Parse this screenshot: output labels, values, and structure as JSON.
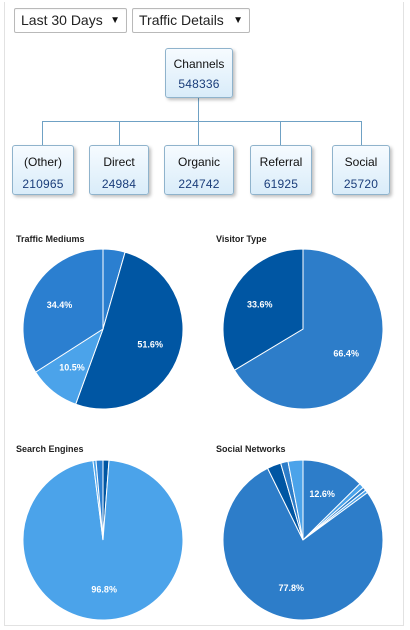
{
  "filters": {
    "range": "Last 30 Days",
    "view": "Traffic Details"
  },
  "tree": {
    "root": {
      "label": "Channels",
      "value": "548336"
    },
    "children": [
      {
        "label": "(Other)",
        "value": "210965"
      },
      {
        "label": "Direct",
        "value": "24984"
      },
      {
        "label": "Organic",
        "value": "224742"
      },
      {
        "label": "Referral",
        "value": "61925"
      },
      {
        "label": "Social",
        "value": "25720"
      }
    ]
  },
  "colors": {
    "dark_blue": "#0056a3",
    "mid_blue": "#2b7fd0",
    "medium_blue": "#2d7dc9",
    "light_blue": "#4ba3ea",
    "node_border": "#8fb3cc",
    "connector": "#6fa1c4"
  },
  "chart_data": [
    {
      "type": "pie",
      "title": "Traffic Mediums",
      "slices": [
        {
          "value": 4.5,
          "label": "",
          "color": "#2b7fd0"
        },
        {
          "value": 51.6,
          "label": "51.6%",
          "color": "#0056a3"
        },
        {
          "value": 10.5,
          "label": "10.5%",
          "color": "#4ba3ea"
        },
        {
          "value": 34.4,
          "label": "34.4%",
          "color": "#2b7fd0"
        }
      ]
    },
    {
      "type": "pie",
      "title": "Visitor Type",
      "slices": [
        {
          "value": 66.4,
          "label": "66.4%",
          "color": "#2d7dc9"
        },
        {
          "value": 33.6,
          "label": "33.6%",
          "color": "#0056a3"
        }
      ]
    },
    {
      "type": "pie",
      "title": "Search Engines",
      "slices": [
        {
          "value": 1.2,
          "label": "",
          "color": "#0056a3"
        },
        {
          "value": 96.8,
          "label": "96.8%",
          "color": "#4ba3ea"
        },
        {
          "value": 0.6,
          "label": "",
          "color": "#4ba3ea"
        },
        {
          "value": 1.4,
          "label": "",
          "color": "#2b7fd0"
        }
      ]
    },
    {
      "type": "pie",
      "title": "Social Networks",
      "slices": [
        {
          "value": 12.6,
          "label": "12.6%",
          "color": "#2d7dc9"
        },
        {
          "value": 1.0,
          "label": "",
          "color": "#4ba3ea"
        },
        {
          "value": 0.7,
          "label": "",
          "color": "#2d7dc9"
        },
        {
          "value": 0.6,
          "label": "",
          "color": "#4ba3ea"
        },
        {
          "value": 77.8,
          "label": "77.8%",
          "color": "#2d7dc9"
        },
        {
          "value": 2.8,
          "label": "",
          "color": "#0056a3"
        },
        {
          "value": 1.5,
          "label": "",
          "color": "#2d7dc9"
        },
        {
          "value": 3.0,
          "label": "",
          "color": "#4ba3ea"
        }
      ]
    }
  ]
}
